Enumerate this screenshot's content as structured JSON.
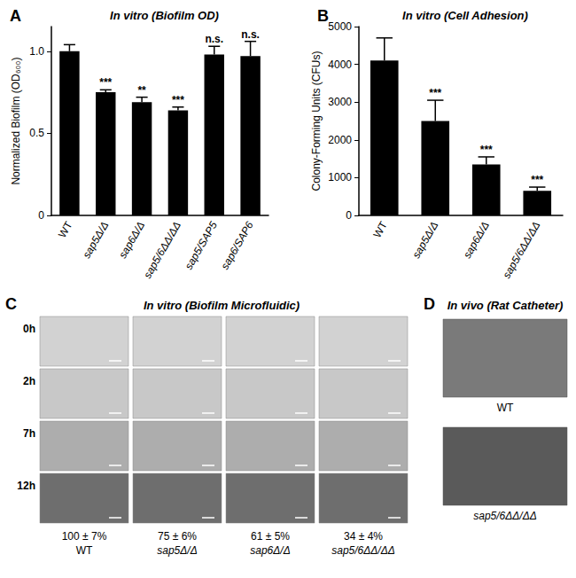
{
  "chart_data": [
    {
      "panel": "A",
      "type": "bar",
      "title": "In vitro (Biofilm OD)",
      "y_label": "Normalized Biofilm (OD₆₀₀)",
      "categories": [
        "WT",
        "sap5Δ/Δ",
        "sap6Δ/Δ",
        "sap5/6ΔΔ/ΔΔ",
        "sap5/SAP5",
        "sap6/SAP6"
      ],
      "values": [
        1.0,
        0.75,
        0.69,
        0.64,
        0.98,
        0.97
      ],
      "errors": [
        0.04,
        0.015,
        0.03,
        0.02,
        0.05,
        0.09
      ],
      "annotations": [
        null,
        "***",
        "**",
        "***",
        "n.s.",
        "n.s."
      ],
      "color": "#000000",
      "ylim": [
        0,
        1.15
      ],
      "yticks": [
        0,
        0.5,
        {
          "value": 1,
          "label": "1.0"
        }
      ],
      "grid": false
    },
    {
      "panel": "B",
      "type": "bar",
      "title": "In vitro (Cell Adhesion)",
      "y_label": "Colony-Forming Units (CFUs)",
      "categories": [
        "WT",
        "sap5Δ/Δ",
        "sap6Δ/Δ",
        "sap5/6ΔΔ/ΔΔ"
      ],
      "values": [
        4100,
        2500,
        1350,
        650
      ],
      "errors": [
        600,
        550,
        200,
        100
      ],
      "annotations": [
        null,
        "***",
        "***",
        "***"
      ],
      "color": "#000000",
      "ylim": [
        0,
        5000
      ],
      "yticks": [
        0,
        1000,
        2000,
        3000,
        4000,
        5000
      ],
      "grid": false
    }
  ],
  "panels": [
    {
      "panel": "C",
      "title": "In vitro (Biofilm Microfluidic)",
      "rows": [
        "0h",
        "2h",
        "7h",
        "12h"
      ],
      "columns": [
        {
          "result": "100 ± 7%",
          "strain": "WT"
        },
        {
          "result": "75 ± 6%",
          "strain": "sap5Δ/Δ"
        },
        {
          "result": "61 ± 5%",
          "strain": "sap6Δ/Δ"
        },
        {
          "result": "34 ± 4%",
          "strain": "sap5/6ΔΔ/ΔΔ"
        }
      ]
    },
    {
      "panel": "D",
      "title": "In vivo (Rat Catheter)",
      "images": [
        "WT",
        "sap5/6ΔΔ/ΔΔ"
      ]
    }
  ]
}
